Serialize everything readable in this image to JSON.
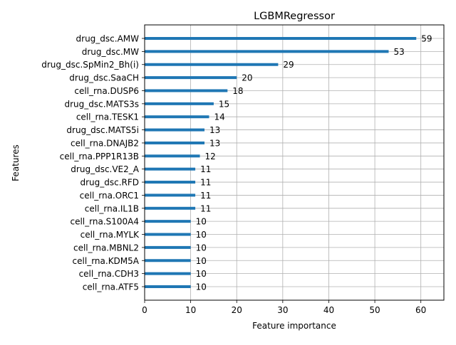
{
  "chart_data": {
    "type": "bar",
    "orientation": "horizontal",
    "title": "LGBMRegressor",
    "xlabel": "Feature importance",
    "ylabel": "Features",
    "xlim": [
      0,
      65
    ],
    "xticks": [
      0,
      10,
      20,
      30,
      40,
      50,
      60
    ],
    "grid": true,
    "bar_color": "#1f77b4",
    "categories": [
      "drug_dsc.AMW",
      "drug_dsc.MW",
      "drug_dsc.SpMin2_Bh(i)",
      "drug_dsc.SaaCH",
      "cell_rna.DUSP6",
      "drug_dsc.MATS3s",
      "cell_rna.TESK1",
      "drug_dsc.MATS5i",
      "cell_rna.DNAJB2",
      "cell_rna.PPP1R13B",
      "drug_dsc.VE2_A",
      "drug_dsc.RFD",
      "cell_rna.ORC1",
      "cell_rna.IL1B",
      "cell_rna.S100A4",
      "cell_rna.MYLK",
      "cell_rna.MBNL2",
      "cell_rna.KDM5A",
      "cell_rna.CDH3",
      "cell_rna.ATF5"
    ],
    "values": [
      59,
      53,
      29,
      20,
      18,
      15,
      14,
      13,
      13,
      12,
      11,
      11,
      11,
      11,
      10,
      10,
      10,
      10,
      10,
      10
    ]
  }
}
